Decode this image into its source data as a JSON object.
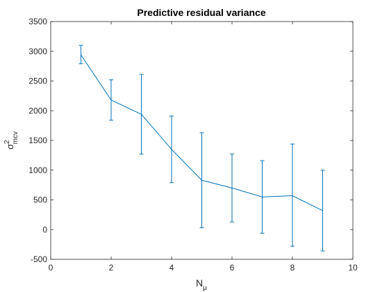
{
  "chart_data": {
    "type": "line",
    "title": "Predictive residual variance",
    "xlabel": {
      "base": "N",
      "subscript": "μ"
    },
    "ylabel": {
      "base": "σ",
      "superscript": "2",
      "subscript": "mcv"
    },
    "xlim": [
      0,
      10
    ],
    "ylim": [
      -500,
      3500
    ],
    "xticks": [
      0,
      2,
      4,
      6,
      8,
      10
    ],
    "yticks": [
      -500,
      0,
      500,
      1000,
      1500,
      2000,
      2500,
      3000,
      3500
    ],
    "grid": false,
    "series": [
      {
        "color": "#0072bd",
        "x": [
          1,
          2,
          3,
          4,
          5,
          6,
          7,
          8,
          9
        ],
        "y": [
          2940,
          2180,
          1940,
          1350,
          830,
          700,
          550,
          570,
          320
        ],
        "err_low": [
          2790,
          1840,
          1270,
          790,
          30,
          130,
          -60,
          -280,
          -360
        ],
        "err_high": [
          3100,
          2520,
          2610,
          1910,
          1630,
          1270,
          1160,
          1440,
          1000
        ]
      }
    ]
  }
}
